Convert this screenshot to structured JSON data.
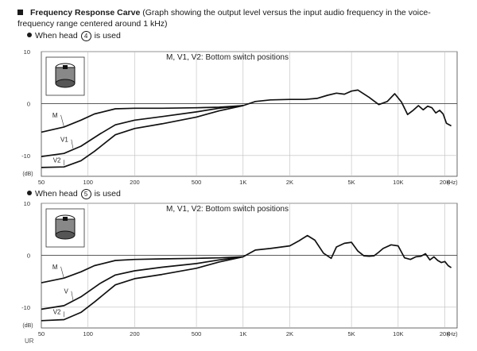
{
  "header": {
    "title_bold": "Frequency Response Carve",
    "title_rest": "(Graph showing the output level versus the input audio frequency in the voice-frequency range centered around 1 kHz)"
  },
  "footer": {
    "text": "UR"
  },
  "chart_data": [
    {
      "type": "line",
      "section_label_prefix": "When head",
      "section_label_num": "4",
      "section_label_suffix": "is used",
      "annotation": "M, V1, V2: Bottom switch positions",
      "y_unit_label": "(dB)",
      "x_unit_label": "(Hz)",
      "x_scale": "log",
      "xlim": [
        50,
        24000
      ],
      "ylim": [
        -14,
        10
      ],
      "grid": true,
      "x_ticks": [
        {
          "v": 50,
          "label": "50"
        },
        {
          "v": 100,
          "label": "100"
        },
        {
          "v": 200,
          "label": "200"
        },
        {
          "v": 500,
          "label": "500"
        },
        {
          "v": 1000,
          "label": "1K"
        },
        {
          "v": 2000,
          "label": "2K"
        },
        {
          "v": 5000,
          "label": "5K"
        },
        {
          "v": 10000,
          "label": "10K"
        },
        {
          "v": 20000,
          "label": "20K"
        }
      ],
      "y_ticks": [
        {
          "v": 10,
          "label": "10"
        },
        {
          "v": 0,
          "label": "0"
        },
        {
          "v": -10,
          "label": "-10"
        }
      ],
      "series": [
        {
          "name": "M",
          "x": [
            50,
            70,
            90,
            110,
            150,
            200,
            300,
            500,
            700,
            1000
          ],
          "y": [
            -5.5,
            -4.5,
            -3.2,
            -2.0,
            -1.0,
            -0.9,
            -0.9,
            -0.8,
            -0.7,
            -0.4
          ]
        },
        {
          "name": "V1",
          "x": [
            50,
            70,
            90,
            120,
            150,
            200,
            300,
            500,
            700,
            1000
          ],
          "y": [
            -10.2,
            -9.6,
            -8.2,
            -5.8,
            -4.1,
            -3.2,
            -2.5,
            -1.6,
            -0.9,
            -0.4
          ]
        },
        {
          "name": "V2",
          "x": [
            50,
            70,
            90,
            110,
            150,
            200,
            300,
            500,
            700,
            1000
          ],
          "y": [
            -12.3,
            -12.2,
            -11.0,
            -9.2,
            -6.0,
            -4.8,
            -3.9,
            -2.6,
            -1.4,
            -0.4
          ]
        },
        {
          "name": "",
          "x": [
            1000,
            1200,
            1500,
            2000,
            2500,
            3000,
            3500,
            4000,
            4500,
            5000,
            5500,
            6500,
            7500,
            8500,
            9500,
            10500,
            11500,
            12500,
            13500,
            14500,
            15500,
            16500,
            17500,
            18500,
            19500,
            20500,
            22000
          ],
          "y": [
            -0.4,
            0.4,
            0.7,
            0.8,
            0.8,
            1.0,
            1.6,
            2.0,
            1.8,
            2.4,
            2.6,
            1.2,
            -0.2,
            0.4,
            1.9,
            0.3,
            -2.1,
            -1.3,
            -0.4,
            -1.2,
            -0.5,
            -0.8,
            -1.8,
            -1.3,
            -2.0,
            -3.8,
            -4.3
          ]
        }
      ]
    },
    {
      "type": "line",
      "section_label_prefix": "When head",
      "section_label_num": "5",
      "section_label_suffix": "is used",
      "annotation": "M, V1, V2: Bottom switch positions",
      "y_unit_label": "(dB)",
      "x_unit_label": "(Hz)",
      "x_scale": "log",
      "xlim": [
        50,
        24000
      ],
      "ylim": [
        -14,
        10
      ],
      "grid": true,
      "x_ticks": [
        {
          "v": 50,
          "label": "50"
        },
        {
          "v": 100,
          "label": "100"
        },
        {
          "v": 200,
          "label": "200"
        },
        {
          "v": 500,
          "label": "500"
        },
        {
          "v": 1000,
          "label": "1K"
        },
        {
          "v": 2000,
          "label": "2K"
        },
        {
          "v": 5000,
          "label": "5K"
        },
        {
          "v": 10000,
          "label": "10K"
        },
        {
          "v": 20000,
          "label": "20K"
        }
      ],
      "y_ticks": [
        {
          "v": 10,
          "label": "10"
        },
        {
          "v": 0,
          "label": "0"
        },
        {
          "v": -10,
          "label": "-10"
        }
      ],
      "series": [
        {
          "name": "M",
          "x": [
            50,
            70,
            90,
            110,
            150,
            200,
            300,
            500,
            700,
            1000
          ],
          "y": [
            -5.3,
            -4.4,
            -3.2,
            -2.0,
            -1.0,
            -0.8,
            -0.7,
            -0.6,
            -0.5,
            -0.3
          ]
        },
        {
          "name": "V",
          "x": [
            50,
            70,
            90,
            120,
            150,
            200,
            300,
            500,
            700,
            1000
          ],
          "y": [
            -10.4,
            -9.7,
            -8.0,
            -5.4,
            -3.8,
            -3.0,
            -2.3,
            -1.6,
            -0.9,
            -0.3
          ]
        },
        {
          "name": "V2",
          "x": [
            50,
            70,
            90,
            110,
            150,
            200,
            300,
            500,
            700,
            1000
          ],
          "y": [
            -12.6,
            -12.4,
            -11.0,
            -9.0,
            -5.7,
            -4.5,
            -3.7,
            -2.5,
            -1.3,
            -0.3
          ]
        },
        {
          "name": "",
          "x": [
            1000,
            1200,
            1500,
            2000,
            2300,
            2600,
            2900,
            3300,
            3700,
            4000,
            4500,
            5000,
            5500,
            6000,
            6500,
            7000,
            7500,
            8000,
            9000,
            10000,
            11000,
            12000,
            13000,
            14000,
            15000,
            16000,
            17000,
            18000,
            19000,
            20000,
            21000,
            22000
          ],
          "y": [
            -0.3,
            1.0,
            1.3,
            1.8,
            2.8,
            3.8,
            2.9,
            0.4,
            -0.6,
            1.6,
            2.3,
            2.5,
            0.8,
            -0.1,
            -0.2,
            -0.1,
            0.6,
            1.3,
            2.0,
            1.8,
            -0.5,
            -0.8,
            -0.3,
            -0.2,
            0.3,
            -0.9,
            -0.3,
            -1.0,
            -1.4,
            -1.2,
            -2.0,
            -2.4
          ]
        }
      ]
    }
  ]
}
